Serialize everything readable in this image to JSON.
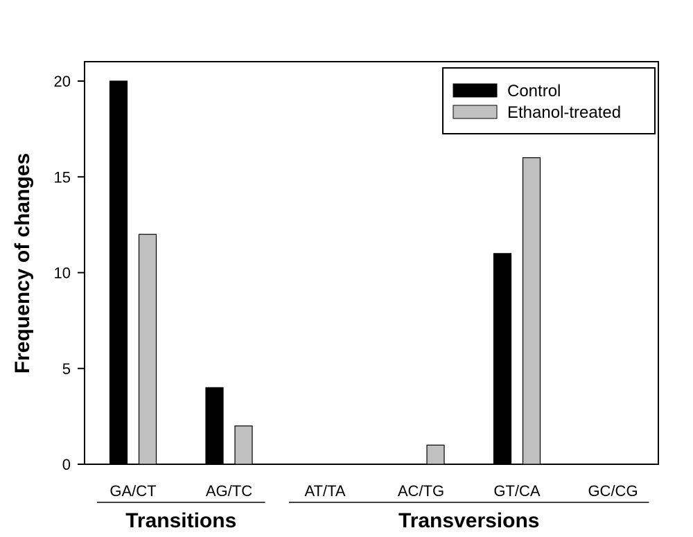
{
  "chart_data": {
    "type": "bar",
    "title": "",
    "xlabel": "",
    "ylabel": "Frequency of changes",
    "ylim": [
      0,
      20
    ],
    "yticks": [
      0,
      5,
      10,
      15,
      20
    ],
    "categories": [
      "GA/CT",
      "AG/TC",
      "AT/TA",
      "AC/TG",
      "GT/CA",
      "GC/CG"
    ],
    "series": [
      {
        "name": "Control",
        "color": "#000000",
        "values": [
          20,
          4,
          0,
          0,
          11,
          0
        ]
      },
      {
        "name": "Ethanol-treated",
        "color": "#c0c0c0",
        "values": [
          12,
          2,
          0,
          1,
          16,
          0
        ]
      }
    ],
    "groups": [
      {
        "label": "Transitions",
        "categories": [
          "GA/CT",
          "AG/TC"
        ]
      },
      {
        "label": "Transversions",
        "categories": [
          "AT/TA",
          "AC/TG",
          "GT/CA",
          "GC/CG"
        ]
      }
    ],
    "legend": {
      "position": "top-right"
    },
    "grid": false
  }
}
